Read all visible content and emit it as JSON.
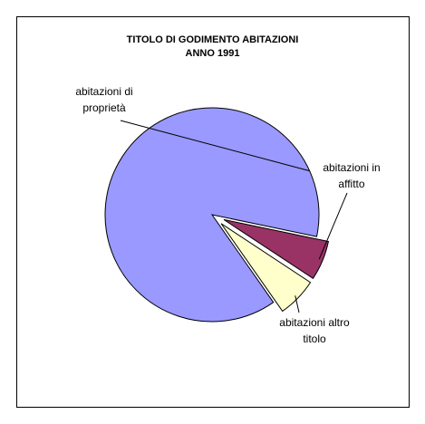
{
  "chart_data": {
    "type": "pie",
    "title": "TITOLO DI GODIMENTO ABITAZIONI",
    "subtitle": "ANNO 1991",
    "categories": [
      "abitazioni di proprietà",
      "abitazioni in affitto",
      "abitazioni altro titolo"
    ],
    "values": [
      88,
      6,
      6
    ],
    "colors": [
      "#9999ff",
      "#993366",
      "#ffffcc"
    ]
  }
}
